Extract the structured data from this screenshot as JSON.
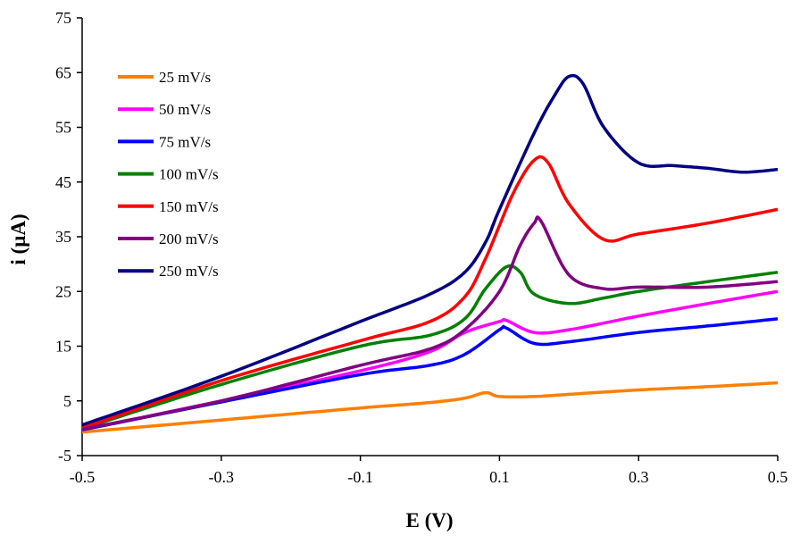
{
  "chart_data": {
    "type": "line",
    "xlabel": "E (V)",
    "ylabel": "i (µA)",
    "xlim": [
      -0.5,
      0.5
    ],
    "ylim": [
      -5,
      75
    ],
    "xticks": [
      "-0.5",
      "-0.3",
      "-0.1",
      "0.1",
      "0.3",
      "0.5"
    ],
    "yticks": [
      "-5",
      "5",
      "15",
      "25",
      "35",
      "45",
      "55",
      "65",
      "75"
    ],
    "grid": false,
    "legend_position": "top-left",
    "series": [
      {
        "name": "25 mV/s",
        "color": "#ff7f00",
        "x": [
          -0.5,
          -0.3,
          -0.1,
          0.0,
          0.05,
          0.08,
          0.1,
          0.15,
          0.2,
          0.3,
          0.4,
          0.5
        ],
        "y": [
          -0.7,
          1.5,
          3.7,
          4.7,
          5.5,
          6.5,
          5.8,
          5.8,
          6.2,
          7.0,
          7.6,
          8.3
        ]
      },
      {
        "name": "50 mV/s",
        "color": "#ff00ff",
        "x": [
          -0.5,
          -0.3,
          -0.1,
          0.0,
          0.05,
          0.1,
          0.11,
          0.15,
          0.2,
          0.3,
          0.4,
          0.5
        ],
        "y": [
          -0.3,
          5.0,
          10.5,
          14.0,
          17.5,
          19.5,
          19.7,
          17.5,
          18.0,
          20.5,
          22.8,
          25.0
        ]
      },
      {
        "name": "75 mV/s",
        "color": "#0000ff",
        "x": [
          -0.5,
          -0.3,
          -0.1,
          0.0,
          0.05,
          0.1,
          0.11,
          0.15,
          0.2,
          0.3,
          0.4,
          0.5
        ],
        "y": [
          -0.3,
          4.8,
          9.8,
          11.5,
          13.5,
          18.0,
          18.3,
          15.5,
          15.8,
          17.5,
          18.7,
          20.0
        ]
      },
      {
        "name": "100 mV/s",
        "color": "#008000",
        "x": [
          -0.5,
          -0.3,
          -0.1,
          0.0,
          0.05,
          0.08,
          0.11,
          0.13,
          0.15,
          0.2,
          0.25,
          0.3,
          0.4,
          0.5
        ],
        "y": [
          -0.1,
          8.0,
          15.0,
          17.0,
          20.0,
          25.5,
          29.5,
          28.5,
          24.5,
          22.8,
          23.8,
          25.0,
          26.8,
          28.5
        ]
      },
      {
        "name": "150 mV/s",
        "color": "#ff0000",
        "x": [
          -0.5,
          -0.3,
          -0.1,
          0.0,
          0.05,
          0.08,
          0.12,
          0.15,
          0.17,
          0.2,
          0.25,
          0.3,
          0.4,
          0.5
        ],
        "y": [
          0.0,
          8.7,
          16.0,
          19.5,
          24.0,
          31.0,
          43.0,
          49.0,
          48.5,
          41.0,
          34.5,
          35.5,
          37.5,
          40.0
        ]
      },
      {
        "name": "200 mV/s",
        "color": "#800080",
        "x": [
          -0.5,
          -0.3,
          -0.1,
          0.0,
          0.05,
          0.1,
          0.13,
          0.15,
          0.16,
          0.2,
          0.25,
          0.3,
          0.4,
          0.5
        ],
        "y": [
          -0.2,
          5.0,
          11.5,
          14.5,
          18.0,
          25.0,
          33.5,
          37.5,
          37.8,
          28.0,
          25.5,
          25.8,
          25.8,
          26.8
        ]
      },
      {
        "name": "250 mV/s",
        "color": "#000080",
        "x": [
          -0.5,
          -0.3,
          -0.1,
          0.0,
          0.05,
          0.08,
          0.1,
          0.15,
          0.18,
          0.2,
          0.22,
          0.25,
          0.3,
          0.35,
          0.4,
          0.45,
          0.5
        ],
        "y": [
          0.6,
          9.5,
          19.5,
          24.5,
          28.5,
          34.0,
          40.0,
          54.0,
          61.0,
          64.3,
          63.0,
          55.0,
          48.5,
          48.0,
          47.5,
          46.8,
          47.3
        ]
      }
    ]
  }
}
